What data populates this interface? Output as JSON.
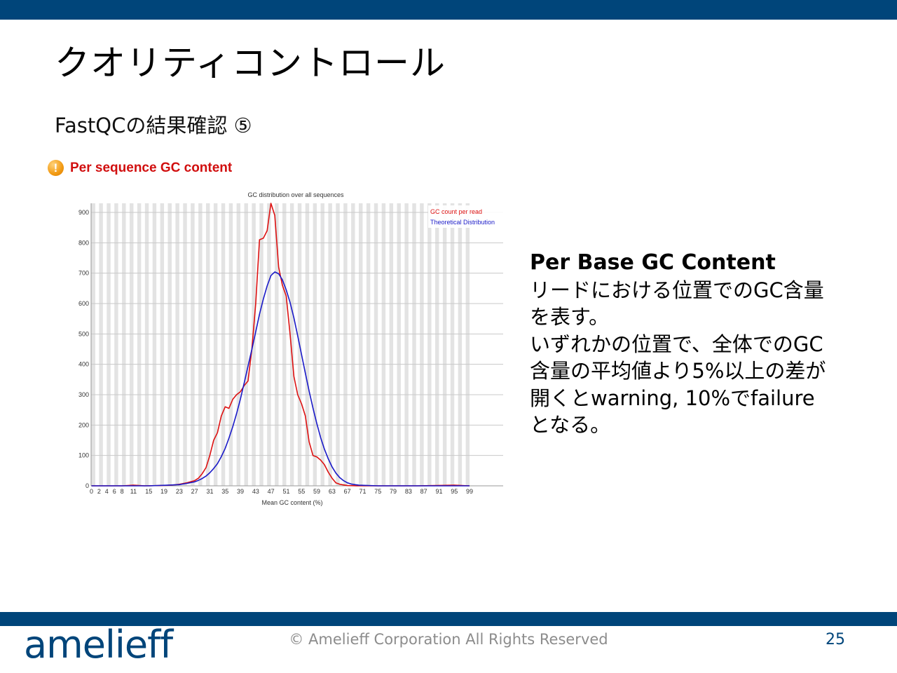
{
  "slide": {
    "title": "クオリティコントロール",
    "subtitle": "FastQCの結果確認 ⑤",
    "module_icon": "!",
    "module_title": "Per sequence GC content",
    "description": {
      "heading": "Per Base GC Content",
      "lines": [
        "リードにおける位置でのGC含量",
        "を表す。",
        "いずれかの位置で、全体でのGC",
        "含量の平均値より5%以上の差が",
        "開くとwarning, 10%でfailure",
        "となる。"
      ]
    },
    "footer": {
      "logo": "amelieff",
      "copyright": "© Amelieff Corporation All Rights Reserved",
      "page_number": "25"
    },
    "colors": {
      "brand": "#00457a",
      "warning_title": "#d10f0f"
    }
  },
  "chart_data": {
    "type": "line",
    "title": "GC distribution over all sequences",
    "xlabel": "Mean GC content (%)",
    "ylabel": "",
    "xlim": [
      0,
      100
    ],
    "ylim": [
      0,
      930
    ],
    "grid": true,
    "legend_position": "top-right",
    "x_tick_labels": [
      "0",
      "2",
      "4",
      "6",
      "8",
      "11",
      "15",
      "19",
      "23",
      "27",
      "31",
      "35",
      "39",
      "43",
      "47",
      "51",
      "55",
      "59",
      "63",
      "67",
      "71",
      "75",
      "79",
      "83",
      "87",
      "91",
      "95",
      "99"
    ],
    "y_tick_labels": [
      "0",
      "100",
      "200",
      "300",
      "400",
      "500",
      "600",
      "700",
      "800",
      "900"
    ],
    "series": [
      {
        "name": "GC count per read",
        "color": "#dd1111",
        "x": [
          0,
          5,
          8,
          11,
          14,
          18,
          21,
          23,
          25,
          27,
          28,
          29,
          30,
          31,
          32,
          33,
          34,
          35,
          36,
          37,
          38,
          39,
          40,
          41,
          42,
          43,
          44,
          45,
          46,
          47,
          48,
          49,
          50,
          51,
          52,
          53,
          54,
          55,
          56,
          57,
          58,
          59,
          60,
          61,
          62,
          63,
          64,
          65,
          67,
          70,
          75,
          80,
          85,
          90,
          95,
          99
        ],
        "y": [
          0,
          0,
          0,
          2,
          0,
          1,
          2,
          5,
          10,
          17,
          25,
          40,
          60,
          100,
          150,
          175,
          230,
          260,
          255,
          285,
          300,
          310,
          330,
          345,
          450,
          600,
          810,
          815,
          840,
          930,
          890,
          720,
          660,
          625,
          500,
          360,
          300,
          270,
          230,
          145,
          100,
          95,
          85,
          70,
          45,
          25,
          10,
          5,
          1,
          0,
          0,
          0,
          0,
          1,
          2,
          0
        ]
      },
      {
        "name": "Theoretical Distribution",
        "color": "#1a1ac8",
        "x": [
          0,
          15,
          20,
          23,
          25,
          27,
          28,
          29,
          30,
          31,
          32,
          33,
          34,
          35,
          36,
          37,
          38,
          39,
          40,
          41,
          42,
          43,
          44,
          45,
          46,
          47,
          48,
          49,
          50,
          51,
          52,
          53,
          54,
          55,
          56,
          57,
          58,
          59,
          60,
          61,
          62,
          63,
          64,
          65,
          66,
          67,
          68,
          70,
          75,
          80,
          90,
          99
        ],
        "y": [
          0,
          0,
          2,
          4,
          8,
          13,
          18,
          24,
          32,
          43,
          57,
          73,
          96,
          123,
          157,
          195,
          238,
          286,
          339,
          394,
          449,
          507,
          565,
          615,
          658,
          692,
          704,
          698,
          678,
          645,
          604,
          553,
          494,
          432,
          371,
          312,
          256,
          205,
          159,
          121,
          89,
          62,
          42,
          27,
          17,
          10,
          6,
          2,
          0,
          0,
          0,
          0
        ]
      }
    ]
  }
}
